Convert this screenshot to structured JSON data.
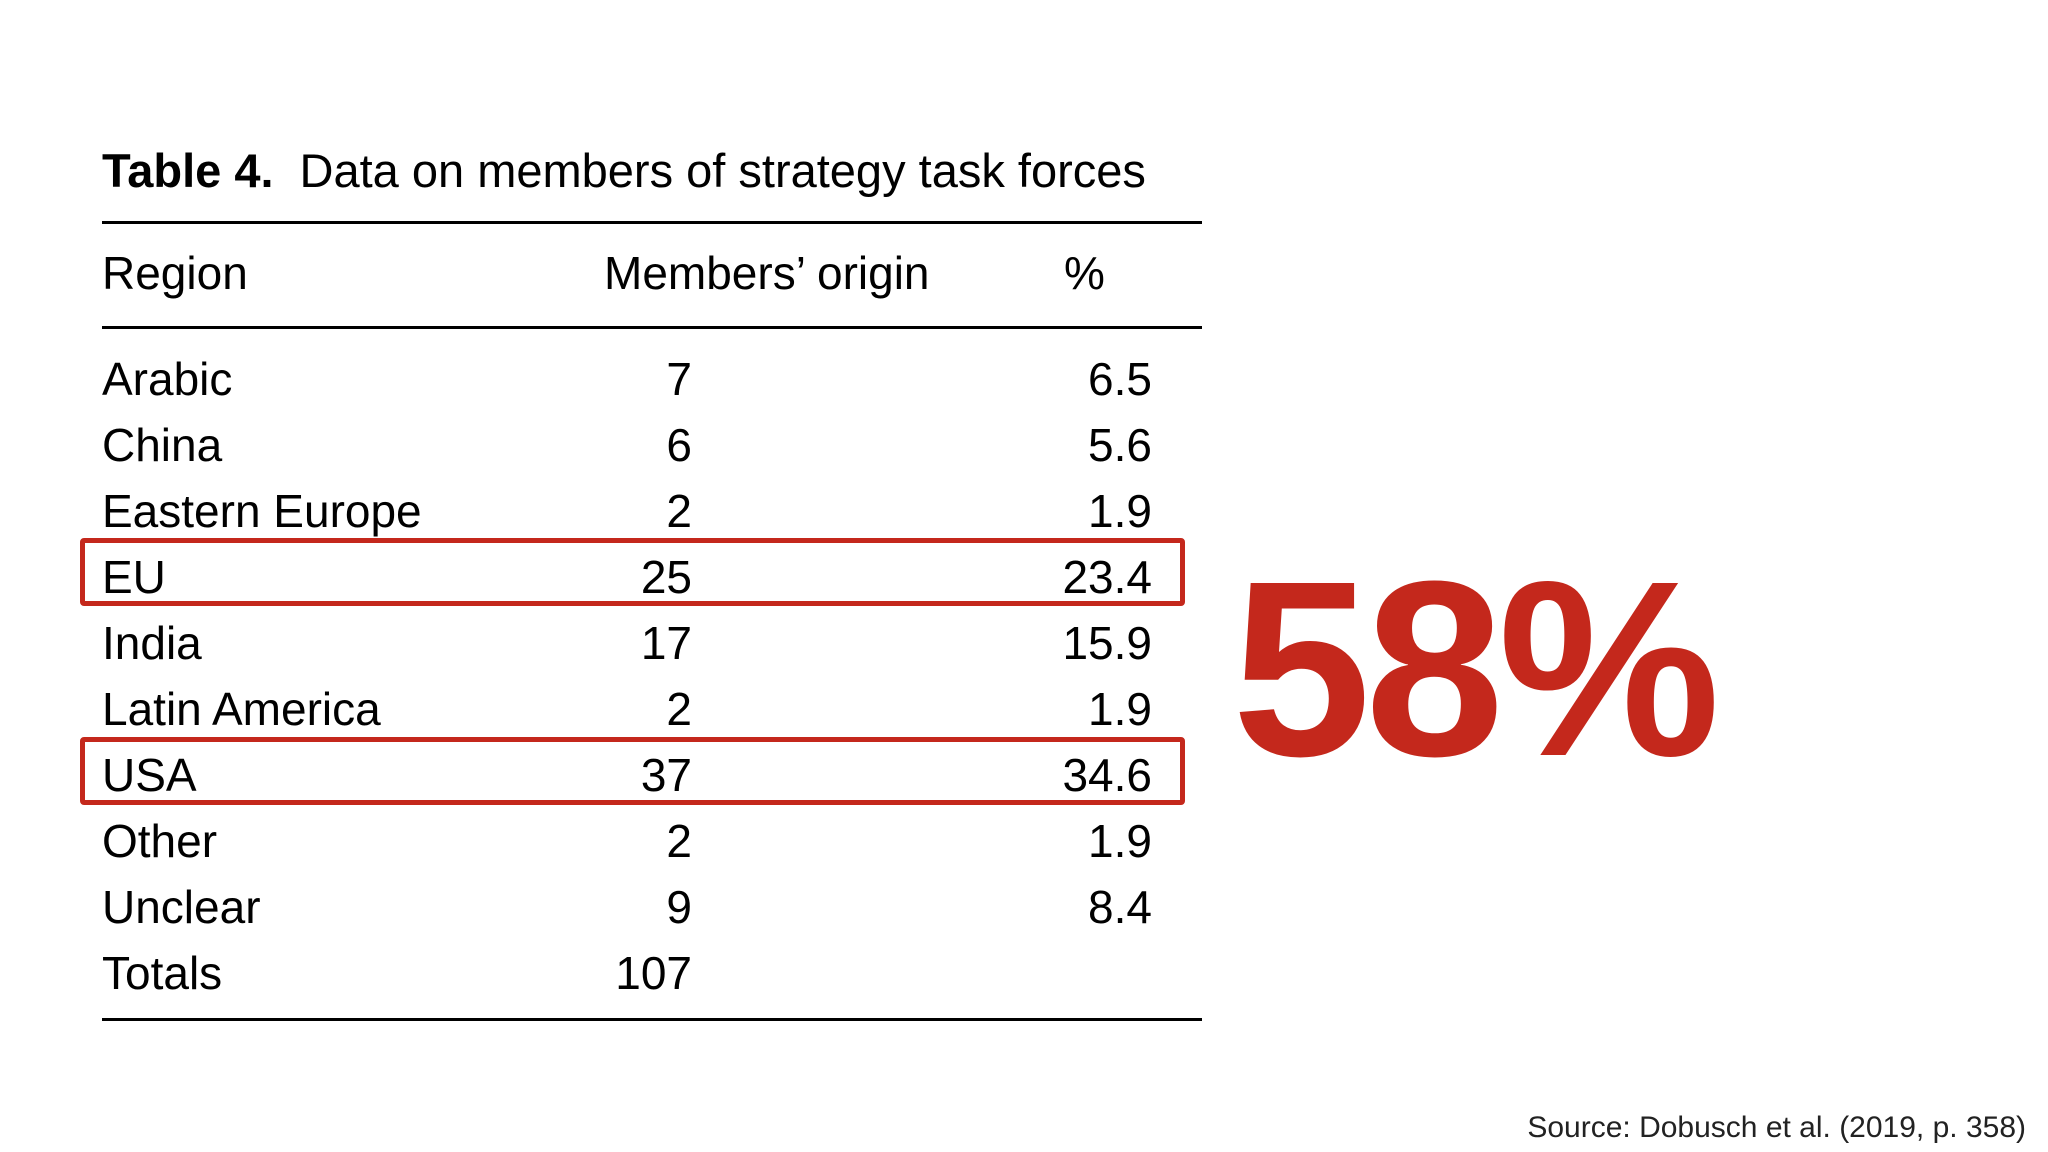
{
  "table": {
    "caption_label": "Table 4.",
    "caption_text": "Data on members of strategy task forces",
    "headers": {
      "region": "Region",
      "members": "Members’ origin",
      "pct": "%"
    },
    "rows": [
      {
        "region": "Arabic",
        "members": "7",
        "pct": "6.5"
      },
      {
        "region": "China",
        "members": "6",
        "pct": "5.6"
      },
      {
        "region": "Eastern Europe",
        "members": "2",
        "pct": "1.9"
      },
      {
        "region": "EU",
        "members": "25",
        "pct": "23.4"
      },
      {
        "region": "India",
        "members": "17",
        "pct": "15.9"
      },
      {
        "region": "Latin America",
        "members": "2",
        "pct": "1.9"
      },
      {
        "region": "USA",
        "members": "37",
        "pct": "34.6"
      },
      {
        "region": "Other",
        "members": "2",
        "pct": "1.9"
      },
      {
        "region": "Unclear",
        "members": "9",
        "pct": "8.4"
      },
      {
        "region": "Totals",
        "members": "107",
        "pct": ""
      }
    ]
  },
  "highlighted_rows": [
    "EU",
    "USA"
  ],
  "highlight_color": "#c4281c",
  "big_stat": "58%",
  "source": "Source: Dobusch et al. (2019, p. 358)"
}
